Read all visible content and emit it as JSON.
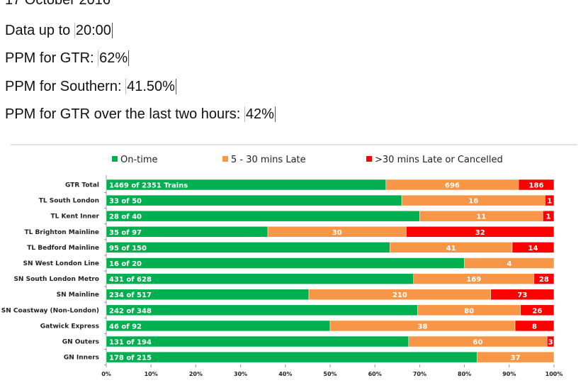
{
  "header": {
    "date": "17 October 2016",
    "data_up_to_label": "Data up to ",
    "data_up_to_value": "20:00",
    "ppm_gtr_label": "PPM for GTR: ",
    "ppm_gtr_value": "62%",
    "ppm_southern_label": "PPM for Southern: ",
    "ppm_southern_value": "41.50%",
    "ppm_two_hours_label": "PPM for GTR over the last two hours: ",
    "ppm_two_hours_value": "42%"
  },
  "chart_data": {
    "type": "bar",
    "orientation": "horizontal",
    "stacked": "percent",
    "categories": [
      "GTR Total",
      "TL South London",
      "TL Kent Inner",
      "TL Brighton Mainline",
      "TL Bedford Mainline",
      "SN West London Line",
      "SN South London Metro",
      "SN Mainline",
      "SN Coastway (Non-London)",
      "Gatwick Express",
      "GN Outers",
      "GN Inners"
    ],
    "series": [
      {
        "name": "On-time",
        "color": "#00b050",
        "values": [
          1469,
          33,
          28,
          35,
          95,
          16,
          431,
          234,
          242,
          46,
          131,
          178
        ]
      },
      {
        "name": "5 - 30 mins Late",
        "color": "#f79646",
        "values": [
          696,
          16,
          11,
          30,
          41,
          4,
          169,
          210,
          80,
          38,
          60,
          37
        ]
      },
      {
        "name": ">30 mins Late or Cancelled",
        "color": "#ff0000",
        "values": [
          186,
          1,
          1,
          32,
          14,
          0,
          28,
          73,
          26,
          8,
          3,
          0
        ]
      }
    ],
    "totals": [
      2351,
      50,
      40,
      97,
      150,
      20,
      628,
      517,
      348,
      92,
      194,
      215
    ],
    "ontime_labels": [
      "1469 of 2351 Trains",
      "33 of 50",
      "28 of 40",
      "35 of 97",
      "95 of 150",
      "16 of 20",
      "431 of 628",
      "234 of 517",
      "242 of 348",
      "46 of 92",
      "131 of 194",
      "178 of 215"
    ],
    "xticks": [
      "0%",
      "10%",
      "20%",
      "30%",
      "40%",
      "50%",
      "60%",
      "70%",
      "80%",
      "90%",
      "100%"
    ],
    "xlim": [
      0,
      100
    ],
    "legend": "top",
    "grid": false
  }
}
